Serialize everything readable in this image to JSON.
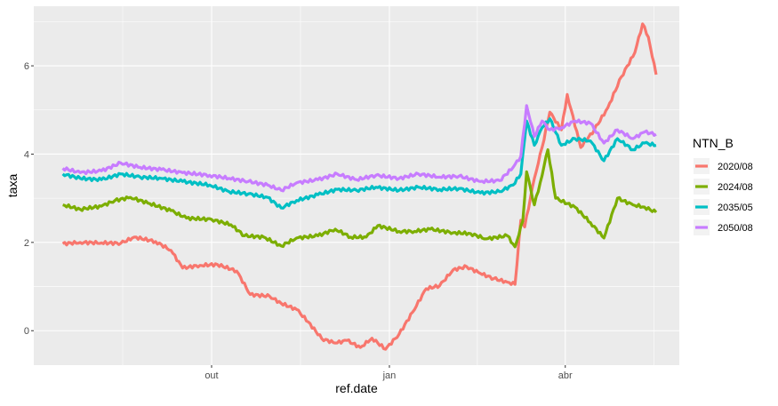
{
  "chart_data": {
    "type": "line",
    "title": "",
    "xlabel": "ref.date",
    "ylabel": "taxa",
    "x_ticks": [
      {
        "date": "2019-10-01",
        "label": "out"
      },
      {
        "date": "2020-01-01",
        "label": "jan"
      },
      {
        "date": "2020-04-01",
        "label": "abr"
      }
    ],
    "y_ticks": [
      0,
      2,
      4,
      6
    ],
    "xlim": [
      "2019-07-01",
      "2020-05-30"
    ],
    "ylim": [
      -0.78,
      7.35
    ],
    "grid": true,
    "legend": {
      "title": "NTN_B",
      "position": "right"
    },
    "series": [
      {
        "name": "2020/08",
        "color": "#F8766D",
        "points": [
          [
            "2019-07-16",
            1.97
          ],
          [
            "2019-07-25",
            2.0
          ],
          [
            "2019-08-05",
            1.99
          ],
          [
            "2019-08-15",
            1.98
          ],
          [
            "2019-08-22",
            2.12
          ],
          [
            "2019-09-02",
            2.02
          ],
          [
            "2019-09-10",
            1.82
          ],
          [
            "2019-09-16",
            1.42
          ],
          [
            "2019-09-25",
            1.48
          ],
          [
            "2019-10-04",
            1.5
          ],
          [
            "2019-10-14",
            1.35
          ],
          [
            "2019-10-21",
            0.82
          ],
          [
            "2019-10-31",
            0.78
          ],
          [
            "2019-11-06",
            0.62
          ],
          [
            "2019-11-14",
            0.48
          ],
          [
            "2019-11-20",
            0.2
          ],
          [
            "2019-11-27",
            -0.18
          ],
          [
            "2019-12-04",
            -0.28
          ],
          [
            "2019-12-10",
            -0.22
          ],
          [
            "2019-12-17",
            -0.38
          ],
          [
            "2019-12-23",
            -0.17
          ],
          [
            "2019-12-30",
            -0.42
          ],
          [
            "2020-01-06",
            -0.08
          ],
          [
            "2020-01-13",
            0.42
          ],
          [
            "2020-01-20",
            0.95
          ],
          [
            "2020-01-27",
            1.02
          ],
          [
            "2020-02-03",
            1.38
          ],
          [
            "2020-02-10",
            1.45
          ],
          [
            "2020-02-17",
            1.3
          ],
          [
            "2020-02-24",
            1.18
          ],
          [
            "2020-03-02",
            1.1
          ],
          [
            "2020-03-06",
            1.05
          ],
          [
            "2020-03-09",
            2.5
          ],
          [
            "2020-03-11",
            2.35
          ],
          [
            "2020-03-16",
            3.45
          ],
          [
            "2020-03-20",
            4.15
          ],
          [
            "2020-03-24",
            4.95
          ],
          [
            "2020-03-30",
            4.55
          ],
          [
            "2020-04-02",
            5.35
          ],
          [
            "2020-04-09",
            4.15
          ],
          [
            "2020-04-16",
            4.55
          ],
          [
            "2020-04-23",
            5.05
          ],
          [
            "2020-04-30",
            5.75
          ],
          [
            "2020-05-07",
            6.3
          ],
          [
            "2020-05-11",
            6.95
          ],
          [
            "2020-05-14",
            6.65
          ],
          [
            "2020-05-18",
            5.8
          ]
        ]
      },
      {
        "name": "2024/08",
        "color": "#7CAE00",
        "points": [
          [
            "2019-07-16",
            2.85
          ],
          [
            "2019-07-25",
            2.75
          ],
          [
            "2019-08-05",
            2.82
          ],
          [
            "2019-08-12",
            2.95
          ],
          [
            "2019-08-20",
            3.02
          ],
          [
            "2019-08-30",
            2.88
          ],
          [
            "2019-09-10",
            2.72
          ],
          [
            "2019-09-18",
            2.55
          ],
          [
            "2019-10-01",
            2.52
          ],
          [
            "2019-10-11",
            2.4
          ],
          [
            "2019-10-18",
            2.15
          ],
          [
            "2019-10-28",
            2.12
          ],
          [
            "2019-11-06",
            1.92
          ],
          [
            "2019-11-14",
            2.1
          ],
          [
            "2019-11-25",
            2.15
          ],
          [
            "2019-12-04",
            2.3
          ],
          [
            "2019-12-12",
            2.12
          ],
          [
            "2019-12-20",
            2.12
          ],
          [
            "2019-12-26",
            2.38
          ],
          [
            "2020-01-06",
            2.25
          ],
          [
            "2020-01-14",
            2.25
          ],
          [
            "2020-01-22",
            2.3
          ],
          [
            "2020-02-03",
            2.22
          ],
          [
            "2020-02-12",
            2.2
          ],
          [
            "2020-02-20",
            2.08
          ],
          [
            "2020-03-02",
            2.15
          ],
          [
            "2020-03-06",
            1.9
          ],
          [
            "2020-03-10",
            2.48
          ],
          [
            "2020-03-12",
            3.6
          ],
          [
            "2020-03-16",
            2.85
          ],
          [
            "2020-03-19",
            3.35
          ],
          [
            "2020-03-23",
            4.1
          ],
          [
            "2020-03-27",
            3.0
          ],
          [
            "2020-04-06",
            2.8
          ],
          [
            "2020-04-14",
            2.45
          ],
          [
            "2020-04-21",
            2.1
          ],
          [
            "2020-04-28",
            3.0
          ],
          [
            "2020-05-06",
            2.85
          ],
          [
            "2020-05-12",
            2.8
          ],
          [
            "2020-05-18",
            2.68
          ]
        ]
      },
      {
        "name": "2035/05",
        "color": "#00BFC4",
        "points": [
          [
            "2019-07-16",
            3.55
          ],
          [
            "2019-07-25",
            3.45
          ],
          [
            "2019-08-05",
            3.42
          ],
          [
            "2019-08-15",
            3.55
          ],
          [
            "2019-08-25",
            3.48
          ],
          [
            "2019-09-05",
            3.45
          ],
          [
            "2019-09-16",
            3.38
          ],
          [
            "2019-09-30",
            3.3
          ],
          [
            "2019-10-10",
            3.15
          ],
          [
            "2019-10-20",
            3.1
          ],
          [
            "2019-10-30",
            3.02
          ],
          [
            "2019-11-06",
            2.78
          ],
          [
            "2019-11-14",
            2.95
          ],
          [
            "2019-11-25",
            3.08
          ],
          [
            "2019-12-05",
            3.2
          ],
          [
            "2019-12-15",
            3.18
          ],
          [
            "2019-12-25",
            3.25
          ],
          [
            "2020-01-06",
            3.18
          ],
          [
            "2020-01-16",
            3.25
          ],
          [
            "2020-01-27",
            3.2
          ],
          [
            "2020-02-06",
            3.22
          ],
          [
            "2020-02-17",
            3.12
          ],
          [
            "2020-02-27",
            3.15
          ],
          [
            "2020-03-05",
            3.3
          ],
          [
            "2020-03-09",
            3.55
          ],
          [
            "2020-03-12",
            4.75
          ],
          [
            "2020-03-16",
            4.2
          ],
          [
            "2020-03-20",
            4.6
          ],
          [
            "2020-03-24",
            4.8
          ],
          [
            "2020-03-30",
            4.2
          ],
          [
            "2020-04-06",
            4.35
          ],
          [
            "2020-04-14",
            4.3
          ],
          [
            "2020-04-21",
            3.85
          ],
          [
            "2020-04-28",
            4.35
          ],
          [
            "2020-05-06",
            4.1
          ],
          [
            "2020-05-12",
            4.25
          ],
          [
            "2020-05-18",
            4.2
          ]
        ]
      },
      {
        "name": "2050/08",
        "color": "#C77CFF",
        "points": [
          [
            "2019-07-16",
            3.68
          ],
          [
            "2019-07-25",
            3.58
          ],
          [
            "2019-08-05",
            3.62
          ],
          [
            "2019-08-15",
            3.8
          ],
          [
            "2019-08-25",
            3.7
          ],
          [
            "2019-09-05",
            3.65
          ],
          [
            "2019-09-16",
            3.58
          ],
          [
            "2019-09-30",
            3.52
          ],
          [
            "2019-10-10",
            3.45
          ],
          [
            "2019-10-20",
            3.38
          ],
          [
            "2019-10-30",
            3.3
          ],
          [
            "2019-11-06",
            3.18
          ],
          [
            "2019-11-14",
            3.35
          ],
          [
            "2019-11-25",
            3.42
          ],
          [
            "2019-12-05",
            3.55
          ],
          [
            "2019-12-15",
            3.42
          ],
          [
            "2019-12-25",
            3.52
          ],
          [
            "2020-01-06",
            3.45
          ],
          [
            "2020-01-16",
            3.55
          ],
          [
            "2020-01-27",
            3.48
          ],
          [
            "2020-02-06",
            3.5
          ],
          [
            "2020-02-17",
            3.38
          ],
          [
            "2020-02-27",
            3.4
          ],
          [
            "2020-03-05",
            3.7
          ],
          [
            "2020-03-09",
            3.95
          ],
          [
            "2020-03-12",
            5.1
          ],
          [
            "2020-03-16",
            4.4
          ],
          [
            "2020-03-20",
            4.75
          ],
          [
            "2020-03-24",
            4.55
          ],
          [
            "2020-03-30",
            4.6
          ],
          [
            "2020-04-06",
            4.75
          ],
          [
            "2020-04-14",
            4.7
          ],
          [
            "2020-04-21",
            4.25
          ],
          [
            "2020-04-28",
            4.55
          ],
          [
            "2020-05-06",
            4.35
          ],
          [
            "2020-05-12",
            4.5
          ],
          [
            "2020-05-18",
            4.45
          ]
        ]
      }
    ]
  }
}
